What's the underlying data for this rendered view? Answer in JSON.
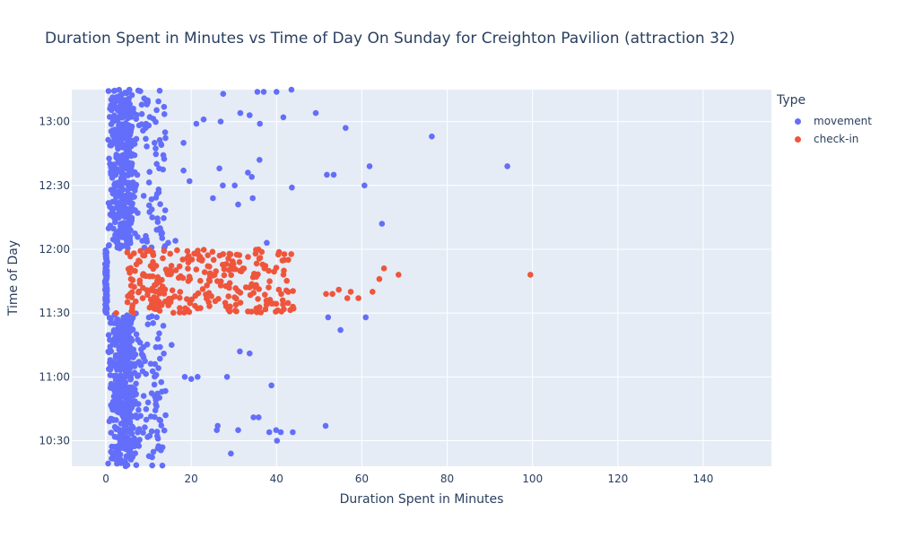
{
  "chart_data": {
    "type": "scatter",
    "title": "Duration Spent in Minutes vs Time of Day On Sunday for Creighton Pavilion (attraction 32)",
    "xlabel": "Duration Spent in Minutes",
    "ylabel": "Time of Day",
    "xlim": [
      -8,
      156
    ],
    "ylim": [
      "10:18",
      "13:15"
    ],
    "x_ticks": [
      0,
      20,
      40,
      60,
      80,
      100,
      120,
      140
    ],
    "y_ticks": [
      "10:30",
      "11:00",
      "11:30",
      "12:00",
      "12:30",
      "13:00"
    ],
    "grid": true,
    "legend": {
      "title": "Type",
      "placement": "right"
    },
    "series": [
      {
        "name": "movement",
        "color": "#636efa",
        "points": [
          [
            43.5,
            "13:15"
          ],
          [
            35.5,
            "13:14"
          ],
          [
            37.0,
            "13:14"
          ],
          [
            40.0,
            "13:14"
          ],
          [
            27.5,
            "13:13"
          ],
          [
            41.6,
            "13:02"
          ],
          [
            49.2,
            "13:04"
          ],
          [
            31.5,
            "13:04"
          ],
          [
            33.7,
            "13:03"
          ],
          [
            22.9,
            "13:01"
          ],
          [
            26.9,
            "13:00"
          ],
          [
            36.1,
            "12:59"
          ],
          [
            21.2,
            "12:59"
          ],
          [
            56.2,
            "12:57"
          ],
          [
            76.4,
            "12:53"
          ],
          [
            13.0,
            "12:49"
          ],
          [
            18.2,
            "12:50"
          ],
          [
            36.0,
            "12:42"
          ],
          [
            61.8,
            "12:39"
          ],
          [
            94.1,
            "12:39"
          ],
          [
            26.6,
            "12:38"
          ],
          [
            18.2,
            "12:37"
          ],
          [
            33.3,
            "12:36"
          ],
          [
            51.8,
            "12:35"
          ],
          [
            53.4,
            "12:35"
          ],
          [
            34.2,
            "12:34"
          ],
          [
            19.6,
            "12:32"
          ],
          [
            27.4,
            "12:30"
          ],
          [
            30.2,
            "12:30"
          ],
          [
            43.6,
            "12:29"
          ],
          [
            60.6,
            "12:30"
          ],
          [
            25.1,
            "12:24"
          ],
          [
            34.4,
            "12:24"
          ],
          [
            31.0,
            "12:21"
          ],
          [
            64.7,
            "12:12"
          ],
          [
            14.6,
            "12:03"
          ],
          [
            16.3,
            "12:04"
          ],
          [
            37.7,
            "12:03"
          ],
          [
            52.1,
            "11:28"
          ],
          [
            60.9,
            "11:28"
          ],
          [
            55.0,
            "11:22"
          ],
          [
            15.4,
            "11:15"
          ],
          [
            31.4,
            "11:12"
          ],
          [
            33.7,
            "11:11"
          ],
          [
            18.5,
            "11:00"
          ],
          [
            20.0,
            "10:59"
          ],
          [
            21.5,
            "11:00"
          ],
          [
            28.4,
            "11:00"
          ],
          [
            38.8,
            "10:56"
          ],
          [
            34.6,
            "10:41"
          ],
          [
            35.8,
            "10:41"
          ],
          [
            26.2,
            "10:37"
          ],
          [
            26.0,
            "10:35"
          ],
          [
            31.0,
            "10:35"
          ],
          [
            38.3,
            "10:34"
          ],
          [
            39.9,
            "10:35"
          ],
          [
            41.0,
            "10:34"
          ],
          [
            43.8,
            "10:34"
          ],
          [
            40.1,
            "10:30"
          ],
          [
            51.5,
            "10:37"
          ],
          [
            29.3,
            "10:24"
          ],
          [
            14.0,
            "10:42"
          ],
          [
            12.2,
            "10:31"
          ],
          [
            11.5,
            "11:06"
          ],
          [
            12.0,
            "12:26"
          ],
          [
            11.4,
            "12:50"
          ],
          [
            9.8,
            "13:10"
          ]
        ]
      },
      {
        "name": "check-in",
        "color": "#ef553b",
        "points": [
          [
            99.5,
            "11:48"
          ],
          [
            68.6,
            "11:48"
          ],
          [
            65.2,
            "11:51"
          ],
          [
            64.1,
            "11:46"
          ],
          [
            62.5,
            "11:40"
          ],
          [
            59.2,
            "11:37"
          ],
          [
            56.6,
            "11:37"
          ],
          [
            54.6,
            "11:41"
          ],
          [
            53.1,
            "11:39"
          ],
          [
            51.6,
            "11:39"
          ],
          [
            57.4,
            "11:40"
          ],
          [
            2.4,
            "11:30"
          ]
        ]
      }
    ],
    "dense_regions": [
      {
        "series": "movement",
        "x_range": [
          0.5,
          6
        ],
        "y_range": [
          "10:18",
          "13:15"
        ]
      },
      {
        "series": "movement",
        "x_range": [
          6,
          14
        ],
        "y_range": [
          "10:18",
          "13:15"
        ]
      },
      {
        "series": "movement",
        "x_range": [
          -0.2,
          0.3
        ],
        "y_range": [
          "11:30",
          "12:00"
        ]
      },
      {
        "series": "check-in",
        "x_range": [
          5,
          44
        ],
        "y_range": [
          "11:30",
          "12:00"
        ]
      }
    ]
  }
}
